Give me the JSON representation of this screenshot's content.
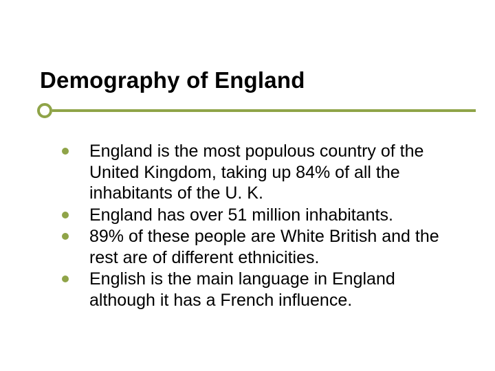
{
  "title": "Demography of England",
  "accent_color": "#8fa448",
  "text_color": "#000000",
  "background_color": "#ffffff",
  "title_fontsize": 33,
  "body_fontsize": 25,
  "bullets": [
    "England is the most populous country of the United Kingdom, taking up 84% of all the inhabitants of the U. K.",
    "England has over 51 million inhabitants.",
    "89% of these people are White British and the rest are of different ethnicities.",
    "English is the main language in England although it has a French influence."
  ]
}
